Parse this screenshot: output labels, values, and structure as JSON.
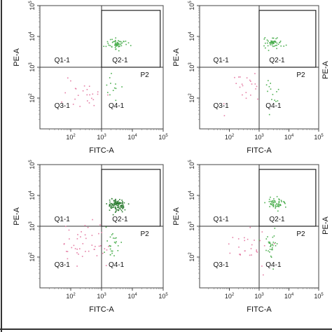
{
  "chart_data": [
    {
      "type": "scatter",
      "panel": "top-left",
      "xlabel": "FITC-A",
      "ylabel": "PE-A",
      "scale": "log",
      "xlim": [
        10,
        100000
      ],
      "ylim": [
        10,
        100000
      ],
      "x_ticks": [
        "10^2",
        "10^3",
        "10^4",
        "10^5"
      ],
      "y_ticks": [
        "10^2",
        "10^3",
        "10^4",
        "10^5"
      ],
      "quadrant_gate": {
        "x": 1000,
        "y": 1000
      },
      "gate_p2": {
        "x": [
          1000,
          80000
        ],
        "y": [
          1000,
          70000
        ]
      },
      "quadrants": [
        "Q1-1",
        "Q2-1",
        "Q3-1",
        "Q4-1"
      ],
      "gate_label": "P2",
      "clusters": [
        {
          "quadrant": "Q2-1",
          "color": "#4caf50",
          "center": [
            3000,
            6000
          ],
          "spread": [
            0.16,
            0.09
          ],
          "count": 60
        },
        {
          "quadrant": "Q4-1",
          "color": "#4caf50",
          "center": [
            2200,
            180
          ],
          "spread": [
            0.12,
            0.25
          ],
          "count": 12
        },
        {
          "quadrant": "Q3-1",
          "color": "#e57fa6",
          "center": [
            250,
            200
          ],
          "spread": [
            0.4,
            0.3
          ],
          "count": 25
        }
      ]
    },
    {
      "type": "scatter",
      "panel": "top-right",
      "xlabel": "FITC-A",
      "ylabel": "PE-A",
      "scale": "log",
      "xlim": [
        10,
        100000
      ],
      "ylim": [
        10,
        100000
      ],
      "x_ticks": [
        "10^2",
        "10^3",
        "10^4",
        "10^5"
      ],
      "y_ticks": [
        "10^2",
        "10^3",
        "10^4",
        "10^5"
      ],
      "quadrant_gate": {
        "x": 1000,
        "y": 1000
      },
      "gate_p2": {
        "x": [
          1000,
          80000
        ],
        "y": [
          1000,
          70000
        ]
      },
      "quadrants": [
        "Q1-1",
        "Q2-1",
        "Q3-1",
        "Q4-1"
      ],
      "gate_label": "P2",
      "clusters": [
        {
          "quadrant": "Q2-1",
          "color": "#4caf50",
          "center": [
            3000,
            6500
          ],
          "spread": [
            0.15,
            0.09
          ],
          "count": 55
        },
        {
          "quadrant": "Q4-1",
          "color": "#4caf50",
          "center": [
            2500,
            180
          ],
          "spread": [
            0.12,
            0.25
          ],
          "count": 14
        },
        {
          "quadrant": "Q3-1",
          "color": "#e57fa6",
          "center": [
            300,
            200
          ],
          "spread": [
            0.35,
            0.3
          ],
          "count": 22
        }
      ]
    },
    {
      "type": "scatter",
      "panel": "bottom-left",
      "xlabel": "FITC-A",
      "ylabel": "PE-A",
      "scale": "log",
      "xlim": [
        10,
        100000
      ],
      "ylim": [
        10,
        100000
      ],
      "x_ticks": [
        "10^2",
        "10^3",
        "10^4",
        "10^5"
      ],
      "y_ticks": [
        "10^2",
        "10^3",
        "10^4",
        "10^5"
      ],
      "quadrant_gate": {
        "x": 1000,
        "y": 1000
      },
      "gate_p2": {
        "x": [
          1000,
          80000
        ],
        "y": [
          1000,
          70000
        ]
      },
      "quadrants": [
        "Q1-1",
        "Q2-1",
        "Q3-1",
        "Q4-1"
      ],
      "gate_label": "P2",
      "clusters": [
        {
          "quadrant": "Q2-1",
          "color": "#2e7d32",
          "center": [
            3000,
            5000
          ],
          "spread": [
            0.14,
            0.1
          ],
          "count": 110
        },
        {
          "quadrant": "Q4-1",
          "color": "#4caf50",
          "center": [
            2000,
            250
          ],
          "spread": [
            0.15,
            0.25
          ],
          "count": 25
        },
        {
          "quadrant": "Q3-1",
          "color": "#e57fa6",
          "center": [
            300,
            250
          ],
          "spread": [
            0.4,
            0.35
          ],
          "count": 45
        }
      ]
    },
    {
      "type": "scatter",
      "panel": "bottom-right",
      "xlabel": "FITC-A",
      "ylabel": "PE-A",
      "scale": "log",
      "xlim": [
        10,
        100000
      ],
      "ylim": [
        10,
        100000
      ],
      "x_ticks": [
        "10^2",
        "10^3",
        "10^4",
        "10^5"
      ],
      "y_ticks": [
        "10^2",
        "10^3",
        "10^4",
        "10^5"
      ],
      "quadrant_gate": {
        "x": 1000,
        "y": 1000
      },
      "gate_p2": {
        "x": [
          1000,
          80000
        ],
        "y": [
          1000,
          70000
        ]
      },
      "quadrants": [
        "Q1-1",
        "Q2-1",
        "Q3-1",
        "Q4-1"
      ],
      "gate_label": "P2",
      "clusters": [
        {
          "quadrant": "Q2-1",
          "color": "#4caf50",
          "center": [
            3200,
            6000
          ],
          "spread": [
            0.15,
            0.08
          ],
          "count": 55
        },
        {
          "quadrant": "Q4-1",
          "color": "#4caf50",
          "center": [
            2500,
            250
          ],
          "spread": [
            0.12,
            0.25
          ],
          "count": 30
        },
        {
          "quadrant": "Q3-1",
          "color": "#e57fa6",
          "center": [
            400,
            250
          ],
          "spread": [
            0.35,
            0.3
          ],
          "count": 28
        }
      ]
    }
  ],
  "edge_labels": [
    "PE-A",
    "PE-A"
  ]
}
